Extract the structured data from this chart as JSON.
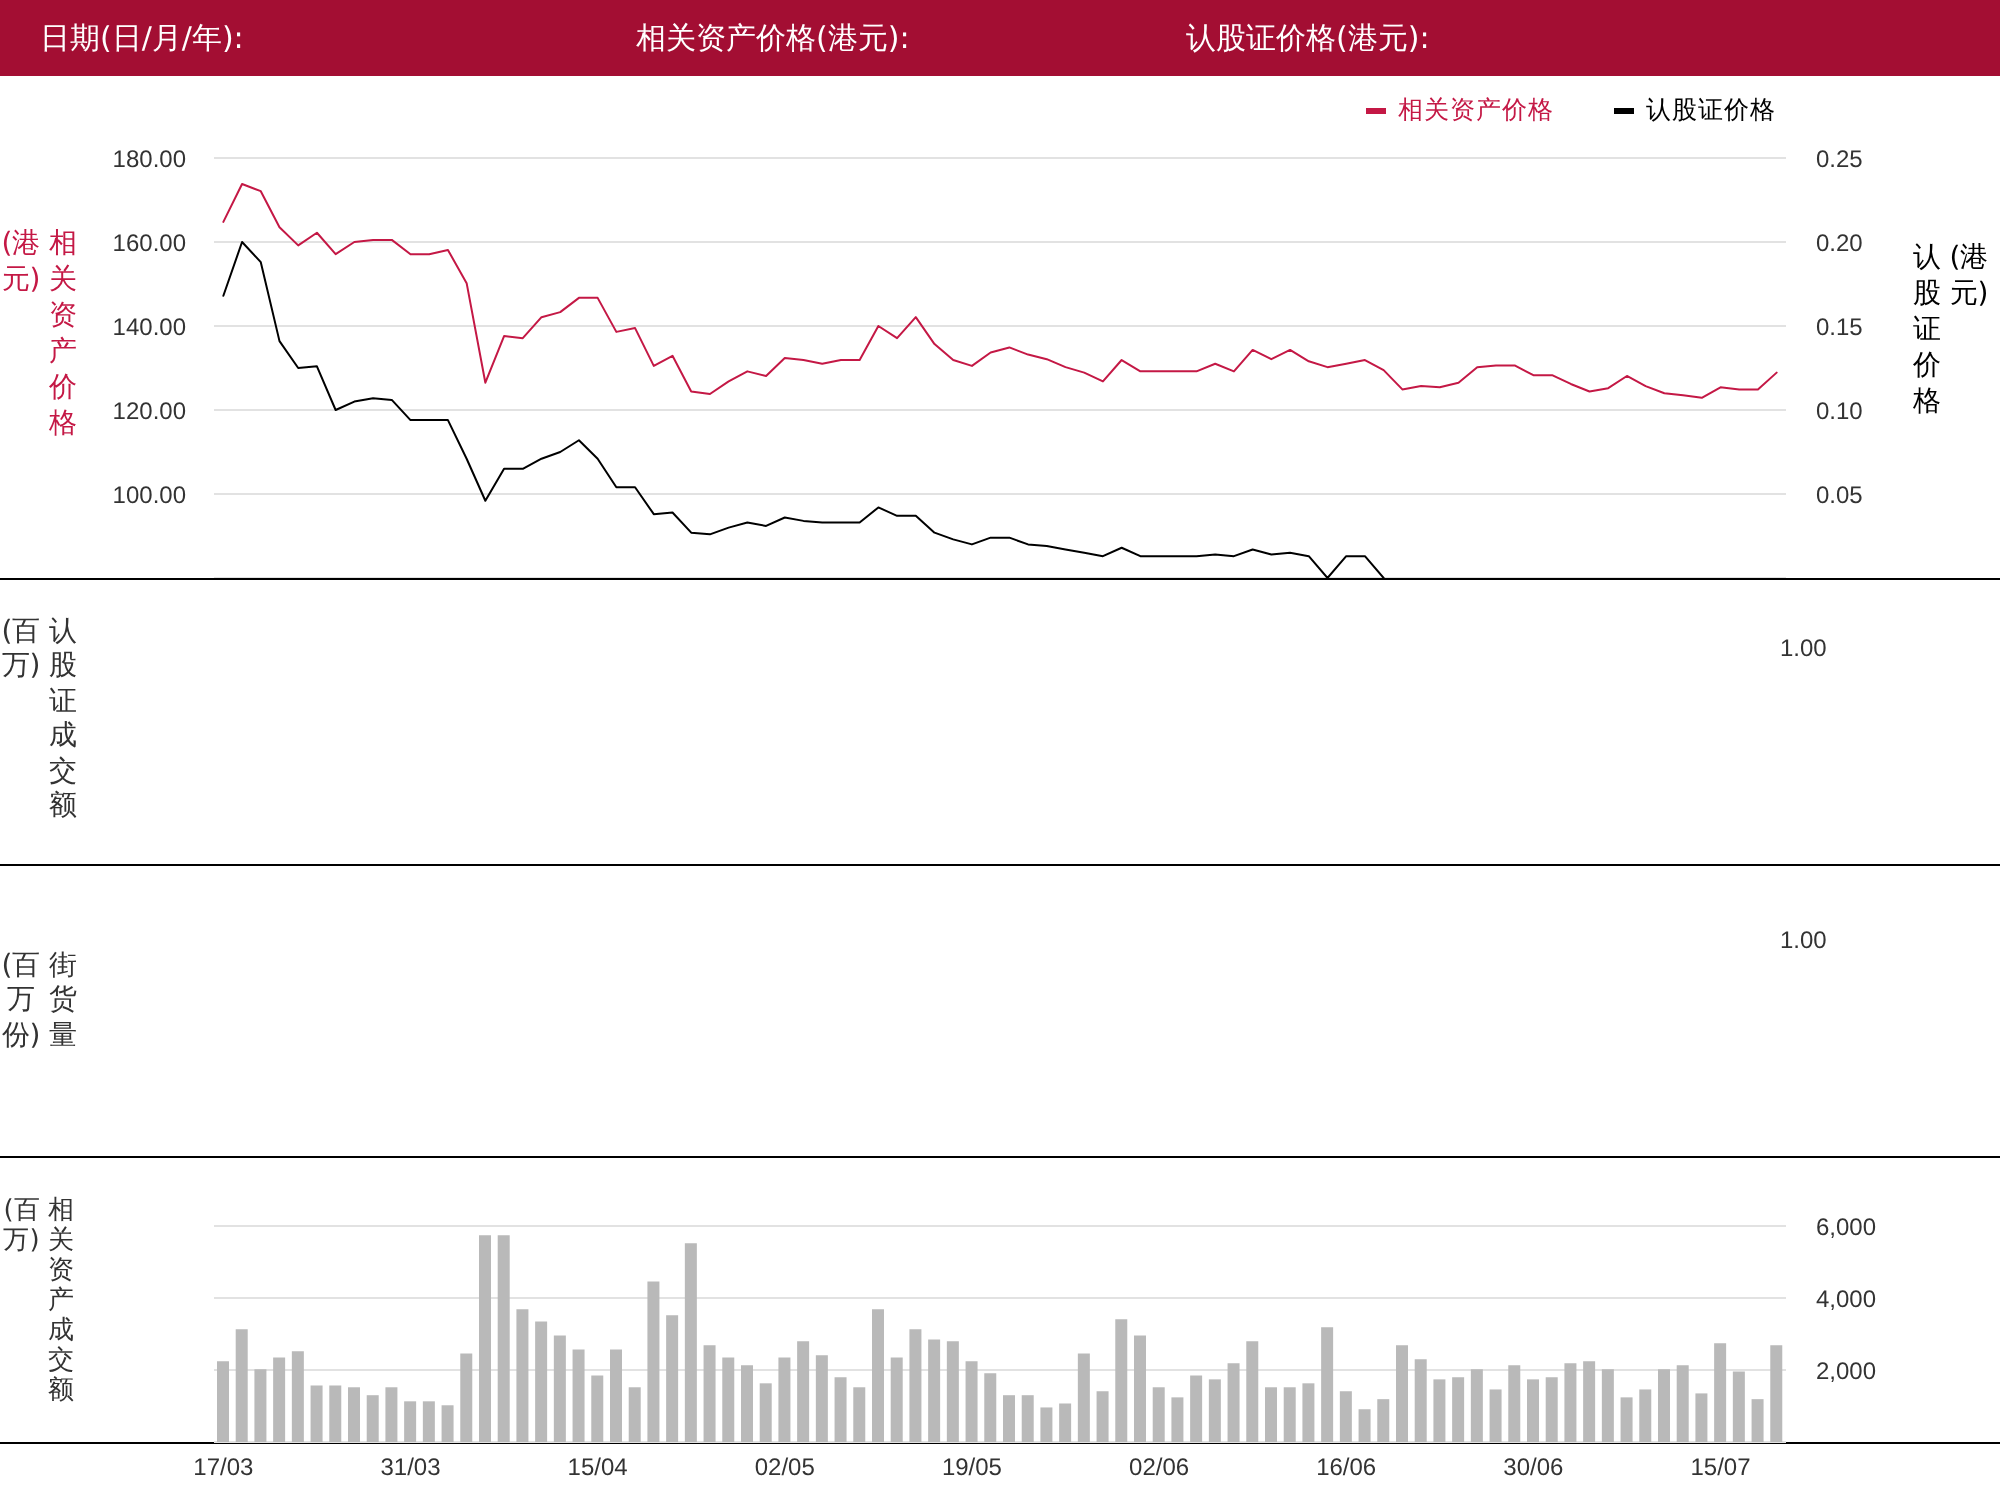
{
  "chart_data": [
    {
      "type": "line",
      "annotations": [
        "日期(日/月/年):",
        "相关资产价格(港元):",
        "认股证价格(港元):"
      ],
      "ylabel": "相关资产价格(港元)",
      "y2label": "认股证价格(港元)",
      "categories": [
        null,
        null,
        null,
        null,
        null,
        null,
        null,
        null,
        null,
        null,
        null,
        null,
        null,
        null,
        null,
        null,
        null,
        null,
        null,
        null,
        null,
        null,
        null,
        null,
        null,
        null,
        null,
        null,
        null,
        null,
        null,
        null,
        null,
        null,
        null,
        null,
        null,
        null,
        null,
        null,
        null,
        null,
        null,
        null,
        null,
        null,
        null,
        null,
        null,
        null,
        null,
        null,
        null,
        null,
        null,
        null,
        null,
        null,
        null,
        null,
        null,
        null,
        null,
        null,
        null,
        null,
        null,
        null,
        null,
        null,
        null,
        null,
        null,
        null,
        null,
        null,
        null,
        null,
        null,
        null,
        null,
        null,
        null,
        null
      ],
      "series": [
        {
          "name": "相关资产价格",
          "color": "#c41845",
          "values": [
            164.8,
            173.8,
            172.1,
            163.5,
            159.2,
            162.2,
            157.1,
            160.0,
            160.5,
            160.5,
            157.1,
            157.1,
            158.1,
            150.2,
            126.5,
            137.6,
            137.1,
            142.1,
            143.3,
            146.7,
            146.7,
            138.6,
            139.5,
            130.5,
            132.9,
            124.4,
            123.8,
            126.8,
            129.2,
            128.1,
            132.4,
            131.9,
            131.0,
            131.9,
            131.9,
            140.0,
            137.1,
            142.1,
            135.7,
            131.9,
            130.5,
            133.7,
            134.9,
            133.2,
            132.1,
            130.2,
            128.9,
            126.8,
            131.9,
            129.2,
            129.2,
            129.2,
            129.2,
            131.0,
            129.2,
            134.3,
            132.1,
            134.3,
            131.6,
            130.2,
            131.0,
            131.9,
            129.5,
            124.9,
            125.7,
            125.4,
            126.5,
            130.2,
            130.6,
            130.6,
            128.3,
            128.3,
            126.2,
            124.4,
            125.2,
            128.1,
            125.7,
            124.0,
            123.5,
            122.9,
            125.4,
            124.9,
            124.9,
            128.9
          ]
        },
        {
          "name": "认股证价格",
          "color": "#000000",
          "axis": "y2",
          "values": [
            0.168,
            0.2,
            0.188,
            0.141,
            0.125,
            0.126,
            0.1,
            0.105,
            0.107,
            0.106,
            0.094,
            0.094,
            0.094,
            0.071,
            0.046,
            0.065,
            0.065,
            0.071,
            0.075,
            0.082,
            0.071,
            0.054,
            0.054,
            0.038,
            0.039,
            0.027,
            0.026,
            0.03,
            0.033,
            0.031,
            0.036,
            0.034,
            0.033,
            0.033,
            0.033,
            0.042,
            0.037,
            0.037,
            0.027,
            0.023,
            0.02,
            0.024,
            0.024,
            0.02,
            0.019,
            0.017,
            0.015,
            0.013,
            0.018,
            0.013,
            0.013,
            0.013,
            0.013,
            0.014,
            0.013,
            0.017,
            0.014,
            0.015,
            0.013,
            0,
            0.013,
            0.013,
            0,
            null,
            null,
            null,
            null,
            null,
            null,
            null,
            null,
            null,
            null,
            null,
            null,
            null,
            null,
            null,
            null,
            null,
            null,
            null,
            null,
            null
          ]
        }
      ],
      "ylim": [
        80,
        180
      ],
      "yticks": [
        {
          "value": 100,
          "label": "100.00"
        },
        {
          "value": 120,
          "label": "120.00"
        },
        {
          "value": 140,
          "label": "140.00"
        },
        {
          "value": 160,
          "label": "160.00"
        },
        {
          "value": 180,
          "label": "180.00"
        }
      ],
      "y2lim": [
        0,
        0.25
      ],
      "y2ticks": [
        0.05,
        {
          "value": 0.1,
          "label": "0.10"
        },
        0.15,
        {
          "value": 0.2,
          "label": "0.20"
        },
        0.25
      ],
      "grid": "y",
      "legend": "top right",
      "marker": "none",
      "tick_labels": "y"
    },
    {
      "type": "other",
      "ylabel": "认股证成交额(百万)",
      "annotations": [
        "1.00"
      ]
    },
    {
      "type": "other",
      "ylabel": "街货量(百万份)",
      "annotations": [
        "1.00"
      ]
    },
    {
      "type": "bar",
      "ylabel": "相关资产成交额(百万)",
      "categories": [
        "17/03",
        null,
        null,
        null,
        null,
        null,
        null,
        null,
        null,
        null,
        "31/03",
        null,
        null,
        null,
        null,
        null,
        null,
        null,
        null,
        null,
        "15/04",
        null,
        null,
        null,
        null,
        null,
        null,
        null,
        null,
        null,
        "02/05",
        null,
        null,
        null,
        null,
        null,
        null,
        null,
        null,
        null,
        "19/05",
        null,
        null,
        null,
        null,
        null,
        null,
        null,
        null,
        null,
        "02/06",
        null,
        null,
        null,
        null,
        null,
        null,
        null,
        null,
        null,
        "16/06",
        null,
        null,
        null,
        null,
        null,
        null,
        null,
        null,
        null,
        "30/06",
        null,
        null,
        null,
        null,
        null,
        null,
        null,
        null,
        null,
        "15/07",
        null,
        null,
        null
      ],
      "values": [
        2240,
        3130,
        2020,
        2350,
        2520,
        1570,
        1570,
        1520,
        1300,
        1520,
        1130,
        1130,
        1020,
        2460,
        5740,
        5740,
        3690,
        3350,
        2960,
        2570,
        1850,
        2570,
        1520,
        4460,
        3520,
        5520,
        2690,
        2350,
        2130,
        1630,
        2350,
        2800,
        2410,
        1800,
        1520,
        3690,
        2350,
        3130,
        2850,
        2800,
        2240,
        1910,
        1300,
        1300,
        960,
        1070,
        2460,
        1410,
        3410,
        2960,
        1520,
        1240,
        1850,
        1740,
        2190,
        2800,
        1520,
        1520,
        1630,
        3190,
        1410,
        910,
        1190,
        2690,
        2300,
        1740,
        1800,
        2020,
        1460,
        2130,
        1740,
        1800,
        2190,
        2240,
        2020,
        1240,
        1460,
        2020,
        2130,
        1350,
        2740,
        1960,
        1190,
        2690
      ],
      "color": "#b9b9b9",
      "ylim": [
        0,
        6000
      ],
      "yticks": [
        {
          "value": 2000,
          "label": "2,000"
        },
        {
          "value": 4000,
          "label": "4,000"
        },
        {
          "value": 6000,
          "label": "6,000"
        }
      ],
      "grid": "y"
    }
  ]
}
